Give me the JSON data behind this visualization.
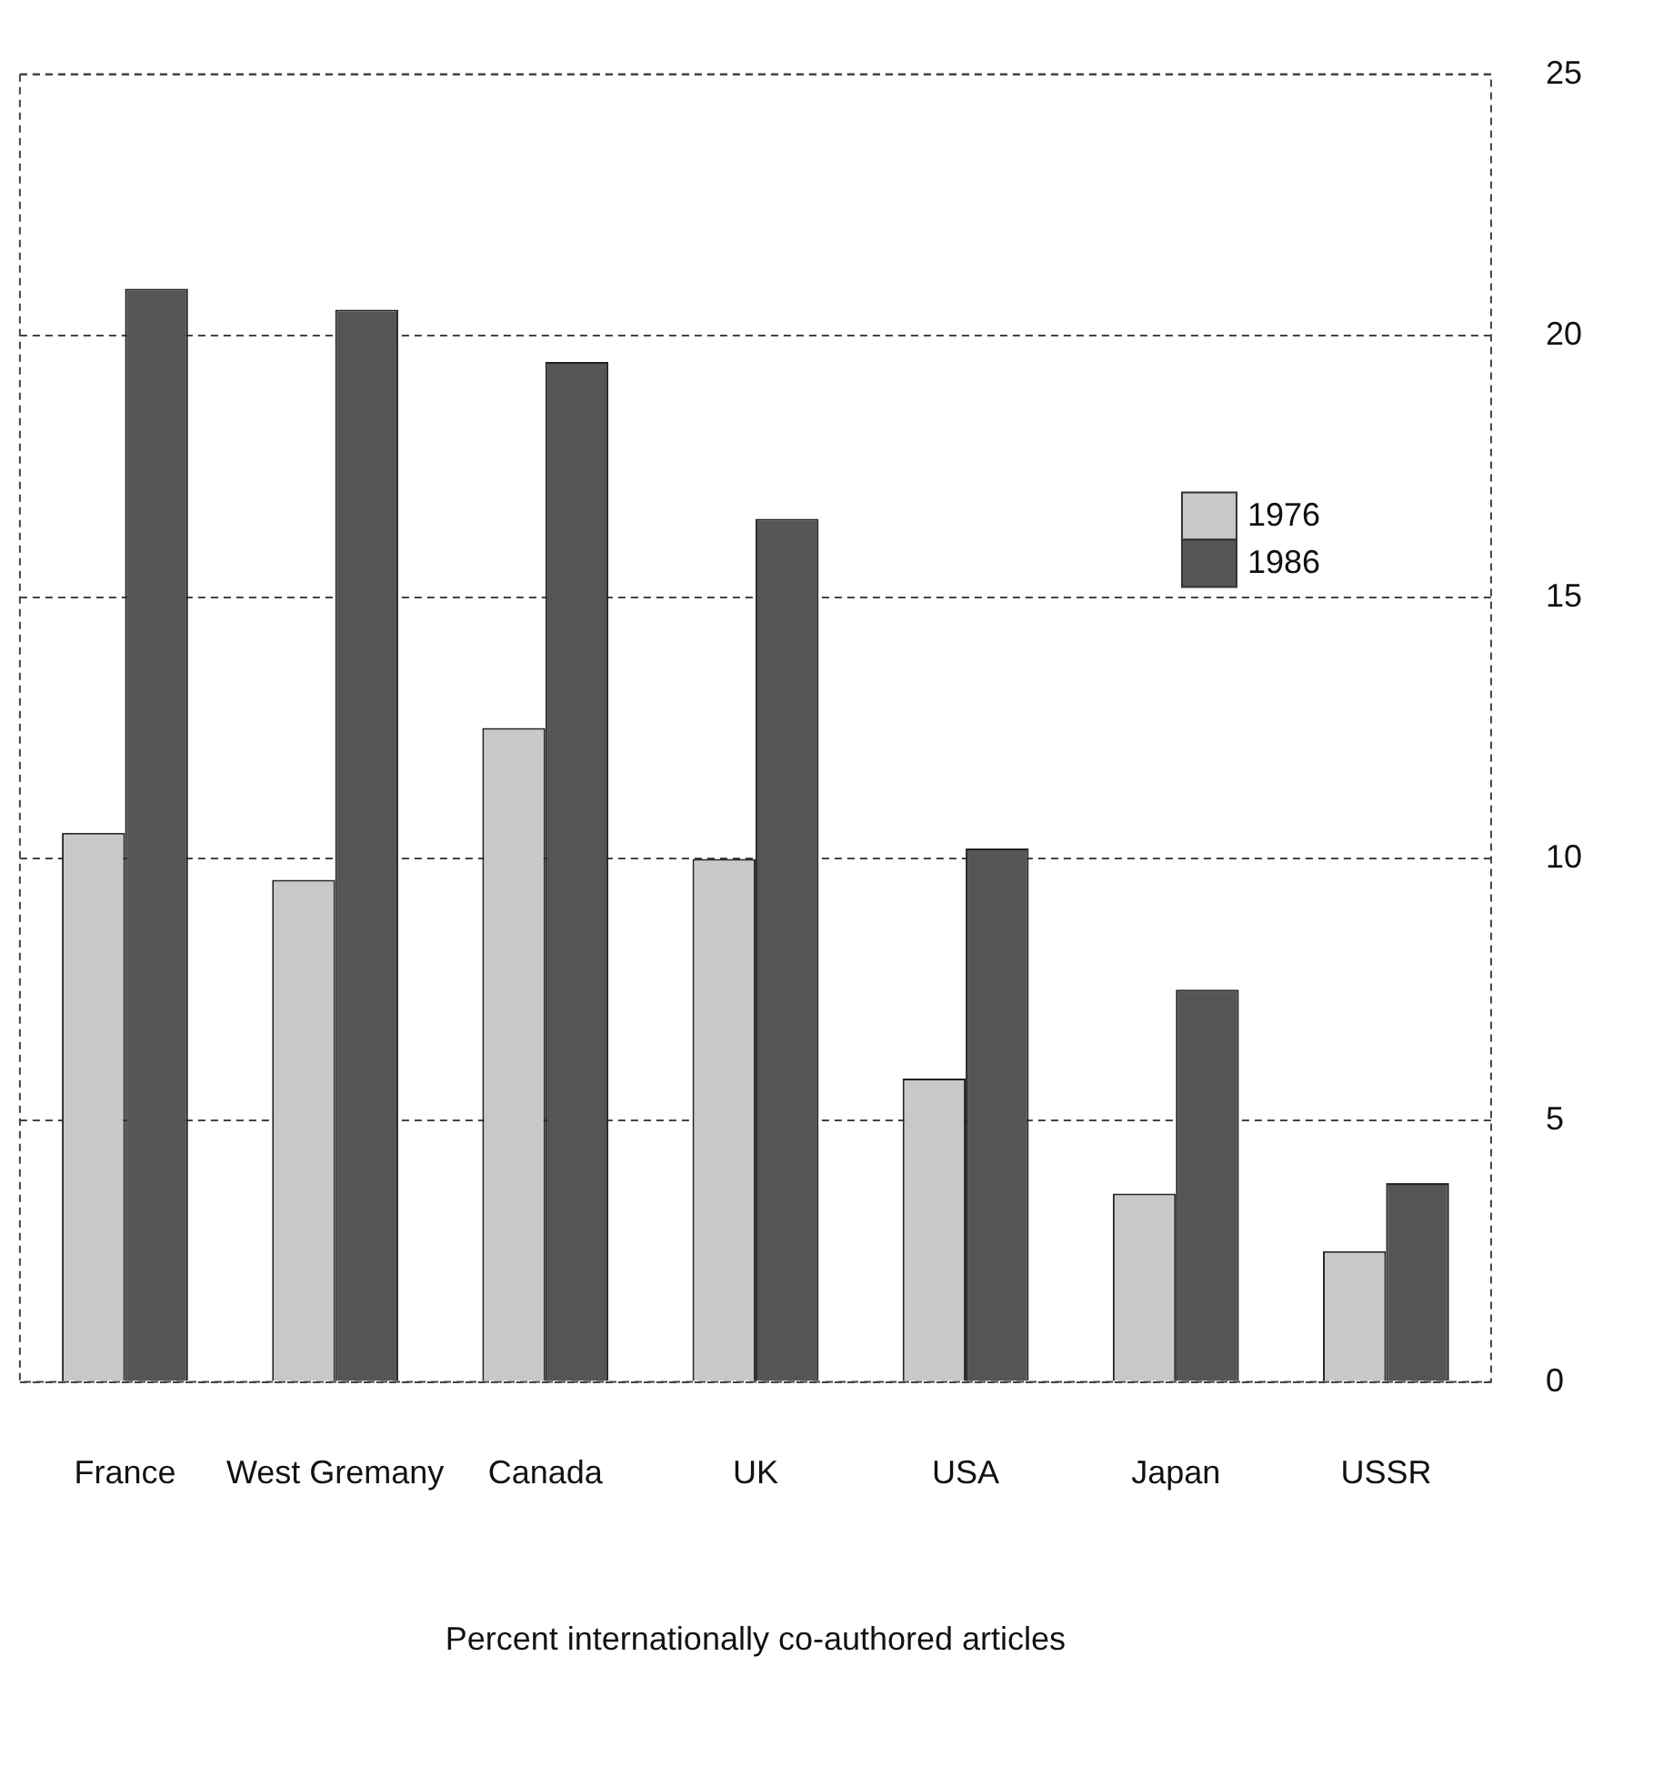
{
  "chart_data": {
    "type": "bar",
    "xlabel": "Percent internationally co-authored articles",
    "categories": [
      "France",
      "West Gremany",
      "Canada",
      "UK",
      "USA",
      "Japan",
      "USSR"
    ],
    "series": [
      {
        "name": "1976",
        "color": "#c8c8c8",
        "values": [
          10.5,
          9.6,
          12.5,
          10.0,
          5.8,
          3.6,
          2.5
        ]
      },
      {
        "name": "1986",
        "color": "#555555",
        "values": [
          20.9,
          20.5,
          19.5,
          16.5,
          10.2,
          7.5,
          3.8
        ]
      }
    ],
    "ylim": [
      0,
      25
    ],
    "yticks": [
      0,
      5,
      10,
      15,
      20,
      25
    ],
    "grid": "y",
    "legend": "top right"
  }
}
